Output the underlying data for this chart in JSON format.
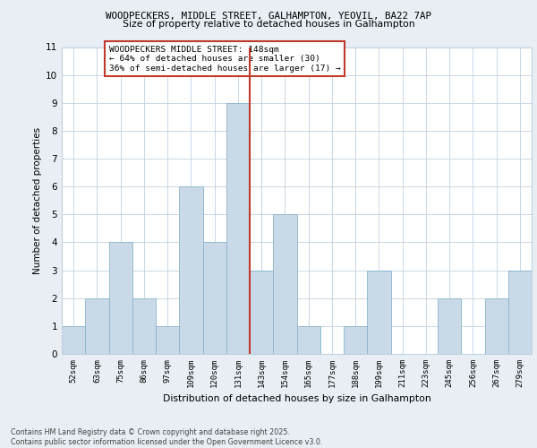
{
  "title1": "WOODPECKERS, MIDDLE STREET, GALHAMPTON, YEOVIL, BA22 7AP",
  "title2": "Size of property relative to detached houses in Galhampton",
  "xlabel": "Distribution of detached houses by size in Galhampton",
  "ylabel": "Number of detached properties",
  "categories": [
    "52sqm",
    "63sqm",
    "75sqm",
    "86sqm",
    "97sqm",
    "109sqm",
    "120sqm",
    "131sqm",
    "143sqm",
    "154sqm",
    "165sqm",
    "177sqm",
    "188sqm",
    "199sqm",
    "211sqm",
    "223sqm",
    "245sqm",
    "256sqm",
    "267sqm",
    "279sqm"
  ],
  "values": [
    1,
    2,
    4,
    2,
    1,
    6,
    4,
    9,
    3,
    5,
    1,
    0,
    1,
    3,
    0,
    0,
    2,
    0,
    2,
    3
  ],
  "bar_color": "#c9d9e8",
  "bar_edge_color": "#8ab4cc",
  "vline_index": 7.5,
  "vline_color": "#c0392b",
  "annotation_text": "WOODPECKERS MIDDLE STREET: 148sqm\n← 64% of detached houses are smaller (30)\n36% of semi-detached houses are larger (17) →",
  "annotation_box_color": "#c0392b",
  "ylim": [
    0,
    11
  ],
  "yticks": [
    0,
    1,
    2,
    3,
    4,
    5,
    6,
    7,
    8,
    9,
    10,
    11
  ],
  "footnote": "Contains HM Land Registry data © Crown copyright and database right 2025.\nContains public sector information licensed under the Open Government Licence v3.0.",
  "background_color": "#e8eef4",
  "plot_background": "#ffffff",
  "grid_color": "#c0d0e0"
}
